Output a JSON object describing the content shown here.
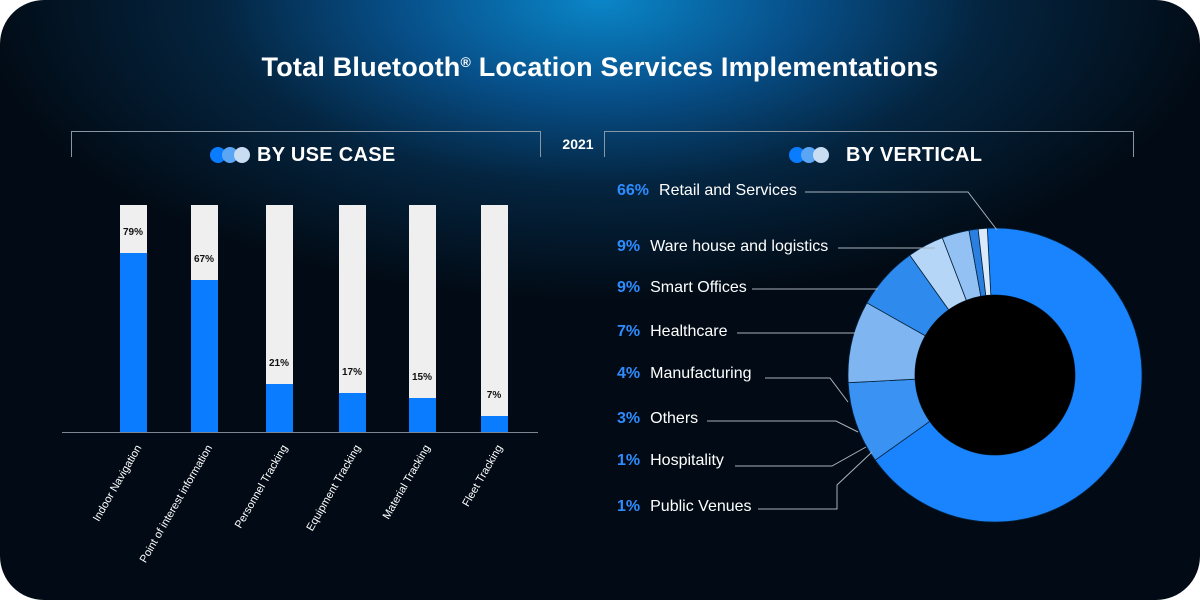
{
  "title": "Total Bluetooth",
  "title_mark": "®",
  "title_rest": " Location Services Implementations",
  "year": "2021",
  "left_section": {
    "title": "BY USE CASE"
  },
  "right_section": {
    "title": "BY VERTICAL"
  },
  "colors": {
    "bar_fill": "#0a7cff",
    "bar_track": "#efefef",
    "accent": "#2d8cff"
  },
  "chart_data": [
    {
      "type": "bar",
      "title": "BY USE CASE",
      "categories": [
        "Indoor Navigation",
        "Point of interest information",
        "Personnel Tracking",
        "Equipment Tracking",
        "Material Tracking",
        "Fleet Tracking"
      ],
      "values": [
        79,
        67,
        21,
        17,
        15,
        7
      ],
      "value_labels": [
        "79%",
        "67%",
        "21%",
        "17%",
        "15%",
        "7%"
      ],
      "ylim": [
        0,
        100
      ],
      "xlabel": "",
      "ylabel": "",
      "grid": false
    },
    {
      "type": "pie",
      "title": "BY VERTICAL",
      "donut": true,
      "categories": [
        "Retail and Services",
        "Ware house and logistics",
        "Smart Offices",
        "Healthcare",
        "Manufacturing",
        "Others",
        "Hospitality",
        "Public Venues"
      ],
      "values": [
        66,
        9,
        9,
        7,
        4,
        3,
        1,
        1
      ],
      "value_labels": [
        "66%",
        "9%",
        "9%",
        "7%",
        "4%",
        "3%",
        "1%",
        "1%"
      ],
      "colors": [
        "#1a84ff",
        "#3a93f3",
        "#7fb6f1",
        "#2f8aee",
        "#b6d6f7",
        "#93c1f3",
        "#2a7fe0",
        "#dbeafb"
      ]
    }
  ]
}
